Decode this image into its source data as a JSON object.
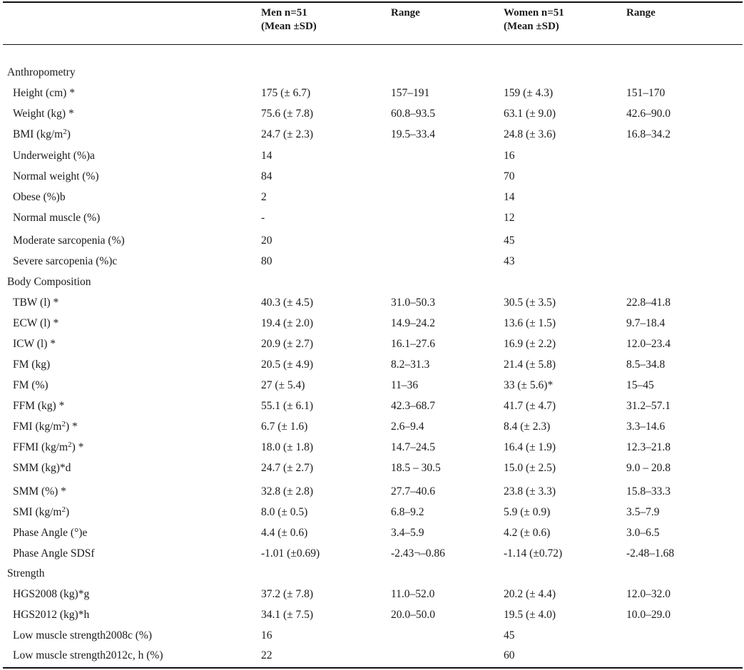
{
  "header": {
    "men": "Men n=51\n(Mean ±SD)",
    "range1": "Range",
    "women": "Women n=51\n(Mean ±SD)",
    "range2": "Range"
  },
  "rows": [
    {
      "section": true,
      "label": "Anthropometry"
    },
    {
      "label": "Height (cm) *",
      "men": "175 (± 6.7)",
      "men_range": "157–191",
      "women": "159 (± 4.3)",
      "women_range": "151–170"
    },
    {
      "label": "Weight (kg) *",
      "men": "75.6 (± 7.8)",
      "men_range": "60.8–93.5",
      "women": "63.1 (± 9.0)",
      "women_range": "42.6–90.0"
    },
    {
      "label": "BMI (kg/m",
      "label_sup": "2",
      "label_after": ")",
      "men": "24.7 (± 2.3)",
      "men_range": "19.5–33.4",
      "women": "24.8 (± 3.6)",
      "women_range": "16.8–34.2"
    },
    {
      "label": "Underweight (%)a",
      "men": "14",
      "men_range": "",
      "women": "16",
      "women_range": ""
    },
    {
      "label": "Normal weight (%)",
      "men": "84",
      "men_range": "",
      "women": "70",
      "women_range": ""
    },
    {
      "label": "Obese (%)b",
      "men": "2",
      "men_range": "",
      "women": "14",
      "women_range": ""
    },
    {
      "label": "Normal muscle (%)",
      "men": "-",
      "men_range": "",
      "women": "12",
      "women_range": ""
    },
    {
      "label": "Moderate sarcopenia (%)",
      "men": "20",
      "men_range": "",
      "women": "45",
      "women_range": ""
    },
    {
      "label": "Severe sarcopenia (%)c",
      "men": "80",
      "men_range": "",
      "women": "43",
      "women_range": ""
    },
    {
      "section": true,
      "label": "Body Composition"
    },
    {
      "label": "TBW (l) *",
      "men": "40.3 (± 4.5)",
      "men_range": "31.0–50.3",
      "women": "30.5 (± 3.5)",
      "women_range": "22.8–41.8"
    },
    {
      "label": "ECW (l) *",
      "men": "19.4 (± 2.0)",
      "men_range": "14.9–24.2",
      "women": "13.6 (± 1.5)",
      "women_range": "9.7–18.4"
    },
    {
      "label": "ICW (l) *",
      "men": "20.9 (± 2.7)",
      "men_range": "16.1–27.6",
      "women": "16.9 (± 2.2)",
      "women_range": "12.0–23.4"
    },
    {
      "label": "FM (kg)",
      "men": "20.5 (± 4.9)",
      "men_range": "8.2–31.3",
      "women": "21.4 (± 5.8)",
      "women_range": "8.5–34.8"
    },
    {
      "label": "FM (%)",
      "men": "27 (± 5.4)",
      "men_range": "11–36",
      "women": "33 (± 5.6)*",
      "women_range": "15–45"
    },
    {
      "label": "FFM (kg) *",
      "men": "55.1 (± 6.1)",
      "men_range": "42.3–68.7",
      "women": "41.7 (± 4.7)",
      "women_range": "31.2–57.1"
    },
    {
      "label": "FMI (kg/m",
      "label_sup": "2",
      "label_after": ") *",
      "men": "6.7 (± 1.6)",
      "men_range": "2.6–9.4",
      "women": "8.4 (± 2.3)",
      "women_range": "3.3–14.6"
    },
    {
      "label": "FFMI (kg/m",
      "label_sup": "2",
      "label_after": ") *",
      "men": "18.0 (± 1.8)",
      "men_range": "14.7–24.5",
      "women": "16.4 (± 1.9)",
      "women_range": "12.3–21.8"
    },
    {
      "label": "SMM (kg)*d",
      "men": "24.7 (± 2.7)",
      "men_range": "18.5 – 30.5",
      "women": "15.0 (± 2.5)",
      "women_range": "9.0 – 20.8"
    },
    {
      "label": "SMM (%) *",
      "men": "32.8 (± 2.8)",
      "men_range": "27.7–40.6",
      "women": "23.8 (± 3.3)",
      "women_range": "15.8–33.3"
    },
    {
      "label": "SMI (kg/m",
      "label_sup": "2",
      "label_after": ")",
      "men": "8.0 (± 0.5)",
      "men_range": "6.8–9.2",
      "women": "5.9 (± 0.9)",
      "women_range": "3.5–7.9"
    },
    {
      "label": "Phase Angle (°)e",
      "men": "4.4 (± 0.6)",
      "men_range": "3.4–5.9",
      "women": "4.2 (± 0.6)",
      "women_range": "3.0–6.5"
    },
    {
      "label": "Phase Angle SDSf",
      "men": "-1.01 (±0.69)",
      "men_range": "-2.43¬–0.86",
      "women": "-1.14 (±0.72)",
      "women_range": "-2.48–1.68"
    },
    {
      "section": true,
      "label": "Strength"
    },
    {
      "label": "HGS2008 (kg)*g",
      "men": "37.2 (± 7.8)",
      "men_range": "11.0–52.0",
      "women": "20.2 (± 4.4)",
      "women_range": "12.0–32.0"
    },
    {
      "label": "HGS2012 (kg)*h",
      "men": "34.1 (± 7.5)",
      "men_range": "20.0–50.0",
      "women": "19.5 (± 4.0)",
      "women_range": "10.0–29.0"
    },
    {
      "label": "Low muscle strength2008c (%)",
      "men": "16",
      "men_range": "",
      "women": "45",
      "women_range": ""
    },
    {
      "label": "Low muscle strength2012c, h (%)",
      "men": "22",
      "men_range": "",
      "women": "60",
      "women_range": ""
    }
  ]
}
